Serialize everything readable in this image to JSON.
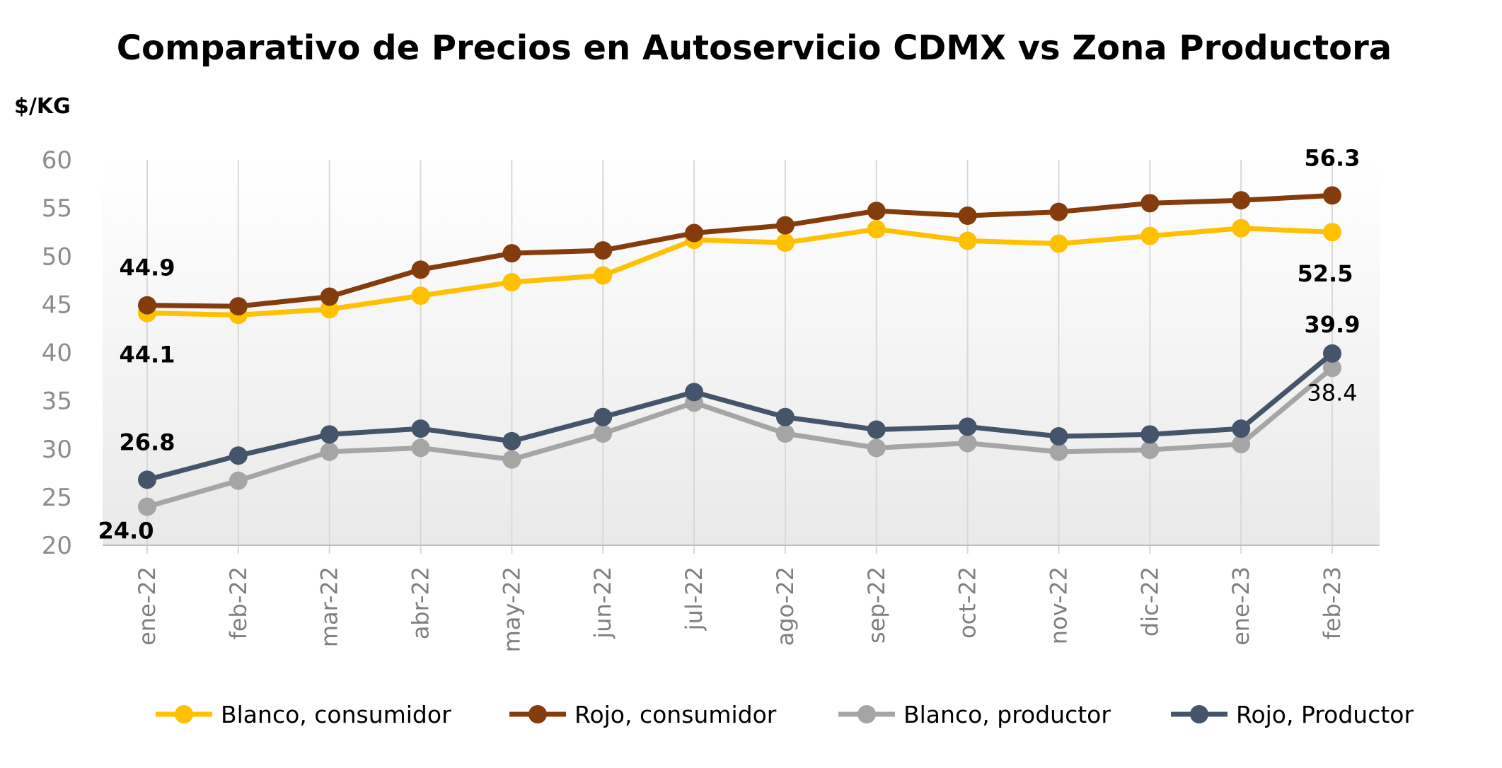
{
  "chart_data": {
    "type": "line",
    "title": "Comparativo de Precios en Autoservicio CDMX vs Zona Productora",
    "ylabel": "$/KG",
    "xlabel": "",
    "ylim": [
      20,
      60
    ],
    "yticks": [
      20,
      25,
      30,
      35,
      40,
      45,
      50,
      55,
      60
    ],
    "grid": "vertical",
    "legend_position": "bottom",
    "categories": [
      "ene-22",
      "feb-22",
      "mar-22",
      "abr-22",
      "may-22",
      "jun-22",
      "jul-22",
      "ago-22",
      "sep-22",
      "oct-22",
      "nov-22",
      "dic-22",
      "ene-23",
      "feb-23"
    ],
    "series": [
      {
        "name": "Blanco, consumidor",
        "color": "#FFC000",
        "values": [
          44.1,
          43.9,
          44.5,
          45.9,
          47.3,
          48.0,
          51.7,
          51.4,
          52.8,
          51.6,
          51.3,
          52.1,
          52.9,
          52.5
        ]
      },
      {
        "name": "Rojo, consumidor",
        "color": "#843C0C",
        "values": [
          44.9,
          44.8,
          45.8,
          48.6,
          50.3,
          50.6,
          52.4,
          53.2,
          54.7,
          54.2,
          54.6,
          55.5,
          55.8,
          56.3
        ]
      },
      {
        "name": "Blanco, productor",
        "color": "#A5A5A5",
        "values": [
          24.0,
          26.7,
          29.7,
          30.1,
          28.9,
          31.6,
          34.8,
          31.6,
          30.1,
          30.6,
          29.7,
          29.9,
          30.5,
          38.4
        ]
      },
      {
        "name": "Rojo, Productor",
        "color": "#44546A",
        "values": [
          26.8,
          29.3,
          31.5,
          32.1,
          30.8,
          33.3,
          35.9,
          33.3,
          32.0,
          32.3,
          31.3,
          31.5,
          32.1,
          39.9
        ]
      }
    ],
    "data_labels": [
      {
        "series": 1,
        "index": 0,
        "text": "44.9",
        "bold": true
      },
      {
        "series": 0,
        "index": 0,
        "text": "44.1",
        "bold": true
      },
      {
        "series": 3,
        "index": 0,
        "text": "26.8",
        "bold": true
      },
      {
        "series": 2,
        "index": 0,
        "text": "24.0",
        "bold": true
      },
      {
        "series": 1,
        "index": 13,
        "text": "56.3",
        "bold": true
      },
      {
        "series": 0,
        "index": 13,
        "text": "52.5",
        "bold": true
      },
      {
        "series": 3,
        "index": 13,
        "text": "39.9",
        "bold": true
      },
      {
        "series": 2,
        "index": 13,
        "text": "38.4",
        "bold": false
      }
    ]
  }
}
